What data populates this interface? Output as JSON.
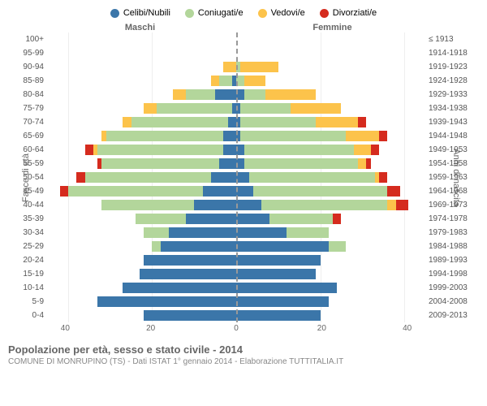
{
  "legend": [
    {
      "label": "Celibi/Nubili",
      "color": "#3b76a9"
    },
    {
      "label": "Coniugati/e",
      "color": "#b3d69b"
    },
    {
      "label": "Vedovi/e",
      "color": "#fcc34b"
    },
    {
      "label": "Divorziati/e",
      "color": "#d52b1e"
    }
  ],
  "header_male": "Maschi",
  "header_female": "Femmine",
  "yaxis_left_title": "Fasce di età",
  "yaxis_right_title": "Anni di nascita",
  "title": "Popolazione per età, sesso e stato civile - 2014",
  "subtitle": "COMUNE DI MONRUPINO (TS) - Dati ISTAT 1° gennaio 2014 - Elaborazione TUTTITALIA.IT",
  "xmax": 45,
  "xticks": [
    40,
    20,
    0,
    20,
    40
  ],
  "colors": {
    "celibi": "#3b76a9",
    "coniugati": "#b3d69b",
    "vedovi": "#fcc34b",
    "divorziati": "#d52b1e",
    "grid": "#eeeeee",
    "centerline": "#999999",
    "bg": "#ffffff"
  },
  "rows": [
    {
      "age": "100+",
      "birth": "≤ 1913",
      "m": {
        "c": 0,
        "co": 0,
        "v": 0,
        "d": 0
      },
      "f": {
        "c": 0,
        "co": 0,
        "v": 0,
        "d": 0
      }
    },
    {
      "age": "95-99",
      "birth": "1914-1918",
      "m": {
        "c": 0,
        "co": 0,
        "v": 0,
        "d": 0
      },
      "f": {
        "c": 0,
        "co": 0,
        "v": 0,
        "d": 0
      }
    },
    {
      "age": "90-94",
      "birth": "1919-1923",
      "m": {
        "c": 0,
        "co": 0,
        "v": 3,
        "d": 0
      },
      "f": {
        "c": 0,
        "co": 1,
        "v": 9,
        "d": 0
      }
    },
    {
      "age": "85-89",
      "birth": "1924-1928",
      "m": {
        "c": 1,
        "co": 3,
        "v": 2,
        "d": 0
      },
      "f": {
        "c": 0,
        "co": 2,
        "v": 5,
        "d": 0
      }
    },
    {
      "age": "80-84",
      "birth": "1929-1933",
      "m": {
        "c": 5,
        "co": 7,
        "v": 3,
        "d": 0
      },
      "f": {
        "c": 2,
        "co": 5,
        "v": 12,
        "d": 0
      }
    },
    {
      "age": "75-79",
      "birth": "1934-1938",
      "m": {
        "c": 1,
        "co": 18,
        "v": 3,
        "d": 0
      },
      "f": {
        "c": 1,
        "co": 12,
        "v": 12,
        "d": 0
      }
    },
    {
      "age": "70-74",
      "birth": "1939-1943",
      "m": {
        "c": 2,
        "co": 23,
        "v": 2,
        "d": 0
      },
      "f": {
        "c": 1,
        "co": 18,
        "v": 10,
        "d": 2
      }
    },
    {
      "age": "65-69",
      "birth": "1944-1948",
      "m": {
        "c": 3,
        "co": 28,
        "v": 1,
        "d": 0
      },
      "f": {
        "c": 1,
        "co": 25,
        "v": 8,
        "d": 2
      }
    },
    {
      "age": "60-64",
      "birth": "1949-1953",
      "m": {
        "c": 3,
        "co": 30,
        "v": 1,
        "d": 2
      },
      "f": {
        "c": 2,
        "co": 26,
        "v": 4,
        "d": 2
      }
    },
    {
      "age": "55-59",
      "birth": "1954-1958",
      "m": {
        "c": 4,
        "co": 28,
        "v": 0,
        "d": 1
      },
      "f": {
        "c": 2,
        "co": 27,
        "v": 2,
        "d": 1
      }
    },
    {
      "age": "50-54",
      "birth": "1959-1963",
      "m": {
        "c": 6,
        "co": 30,
        "v": 0,
        "d": 2
      },
      "f": {
        "c": 3,
        "co": 30,
        "v": 1,
        "d": 2
      }
    },
    {
      "age": "45-49",
      "birth": "1964-1968",
      "m": {
        "c": 8,
        "co": 32,
        "v": 0,
        "d": 2
      },
      "f": {
        "c": 4,
        "co": 32,
        "v": 0,
        "d": 3
      }
    },
    {
      "age": "40-44",
      "birth": "1969-1973",
      "m": {
        "c": 10,
        "co": 22,
        "v": 0,
        "d": 0
      },
      "f": {
        "c": 6,
        "co": 30,
        "v": 2,
        "d": 3
      }
    },
    {
      "age": "35-39",
      "birth": "1974-1978",
      "m": {
        "c": 12,
        "co": 12,
        "v": 0,
        "d": 0
      },
      "f": {
        "c": 8,
        "co": 15,
        "v": 0,
        "d": 2
      }
    },
    {
      "age": "30-34",
      "birth": "1979-1983",
      "m": {
        "c": 16,
        "co": 6,
        "v": 0,
        "d": 0
      },
      "f": {
        "c": 12,
        "co": 10,
        "v": 0,
        "d": 0
      }
    },
    {
      "age": "25-29",
      "birth": "1984-1988",
      "m": {
        "c": 18,
        "co": 2,
        "v": 0,
        "d": 0
      },
      "f": {
        "c": 22,
        "co": 4,
        "v": 0,
        "d": 0
      }
    },
    {
      "age": "20-24",
      "birth": "1989-1993",
      "m": {
        "c": 22,
        "co": 0,
        "v": 0,
        "d": 0
      },
      "f": {
        "c": 20,
        "co": 0,
        "v": 0,
        "d": 0
      }
    },
    {
      "age": "15-19",
      "birth": "1994-1998",
      "m": {
        "c": 23,
        "co": 0,
        "v": 0,
        "d": 0
      },
      "f": {
        "c": 19,
        "co": 0,
        "v": 0,
        "d": 0
      }
    },
    {
      "age": "10-14",
      "birth": "1999-2003",
      "m": {
        "c": 27,
        "co": 0,
        "v": 0,
        "d": 0
      },
      "f": {
        "c": 24,
        "co": 0,
        "v": 0,
        "d": 0
      }
    },
    {
      "age": "5-9",
      "birth": "2004-2008",
      "m": {
        "c": 33,
        "co": 0,
        "v": 0,
        "d": 0
      },
      "f": {
        "c": 22,
        "co": 0,
        "v": 0,
        "d": 0
      }
    },
    {
      "age": "0-4",
      "birth": "2009-2013",
      "m": {
        "c": 22,
        "co": 0,
        "v": 0,
        "d": 0
      },
      "f": {
        "c": 20,
        "co": 0,
        "v": 0,
        "d": 0
      }
    }
  ]
}
